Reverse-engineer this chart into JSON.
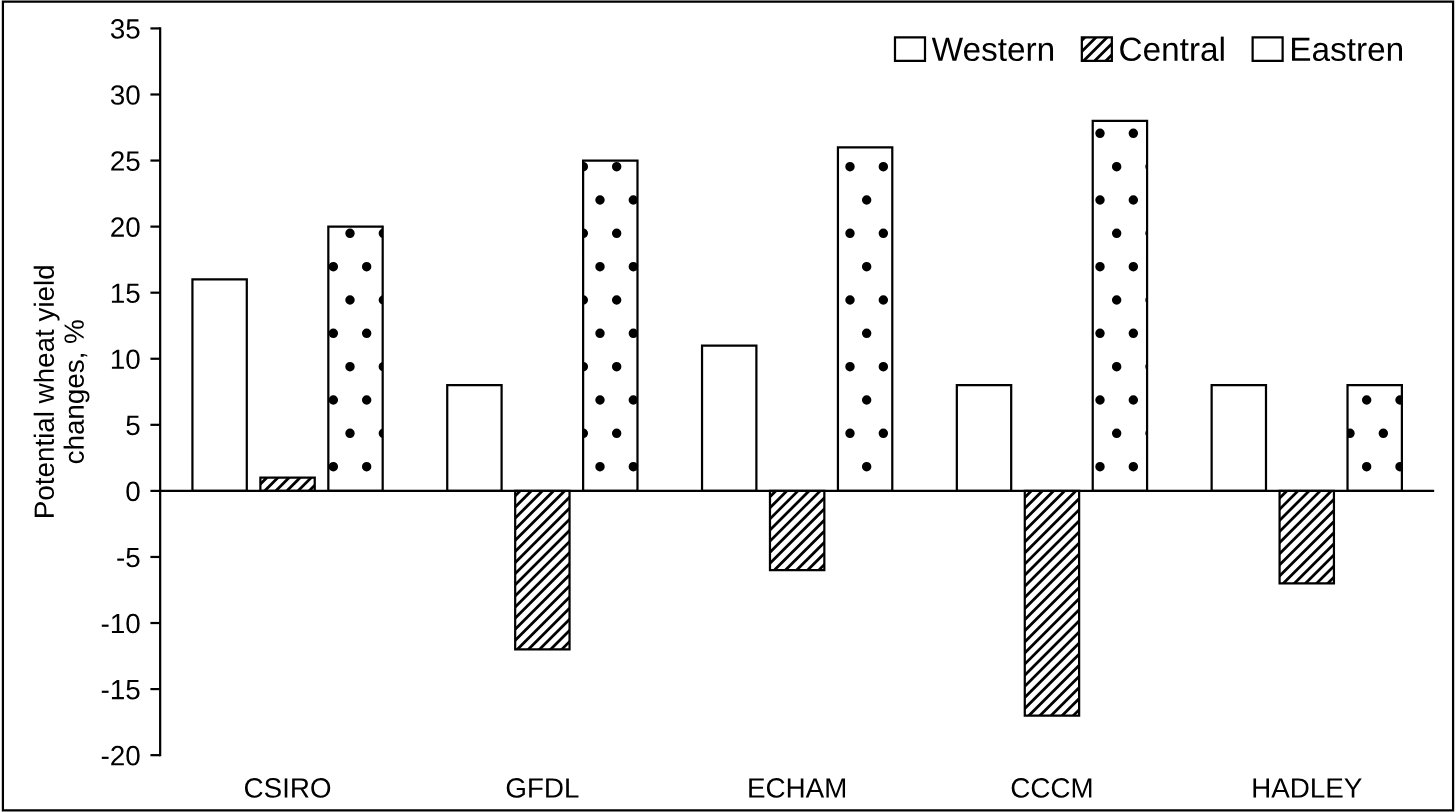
{
  "chart_data": {
    "type": "bar",
    "ylabel": "Potential wheat yield\nchanges, %",
    "categories": [
      "CSIRO",
      "GFDL",
      "ECHAM",
      "CCCM",
      "HADLEY"
    ],
    "series": [
      {
        "name": "Western",
        "color": "#ffffff",
        "values": [
          16,
          8,
          11,
          8,
          8
        ]
      },
      {
        "name": "Central",
        "color": "#000000",
        "values": [
          1,
          -12,
          -6,
          -17,
          -7
        ]
      },
      {
        "name": "Eastren",
        "color": "#000000",
        "values": [
          20,
          25,
          26,
          28,
          8
        ]
      }
    ],
    "ylim": [
      -20,
      35
    ],
    "yticks": [
      -20,
      -15,
      -10,
      -5,
      0,
      5,
      10,
      15,
      20,
      25,
      30,
      35
    ],
    "legend": "top right"
  }
}
